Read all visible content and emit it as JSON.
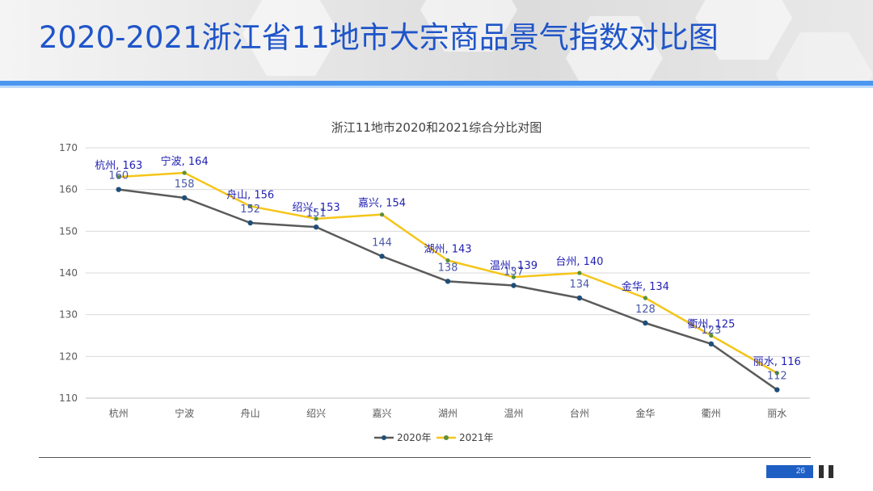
{
  "page": {
    "title": "2020-2021浙江省11地市大宗商品景气指数对比图",
    "page_number": "26"
  },
  "colors": {
    "title": "#1f55c9",
    "band": "#4b97f0",
    "series_2020": "#5a5a5a",
    "series_2020_marker": "#1f4e79",
    "series_2021": "#f5c518",
    "series_2021_marker": "#5b8f3a",
    "label_2021": "#1f1fb4",
    "label_2020": "#4a58a8"
  },
  "chart_data": {
    "type": "line",
    "title": "浙江11地市2020和2021综合分比对图",
    "categories": [
      "杭州",
      "宁波",
      "舟山",
      "绍兴",
      "嘉兴",
      "湖州",
      "温州",
      "台州",
      "金华",
      "衢州",
      "丽水"
    ],
    "series": [
      {
        "name": "2020年",
        "values": [
          160,
          158,
          152,
          151,
          144,
          138,
          137,
          134,
          128,
          123,
          112
        ],
        "label_format": "value"
      },
      {
        "name": "2021年",
        "values": [
          163,
          164,
          156,
          153,
          154,
          143,
          139,
          140,
          134,
          125,
          116
        ],
        "label_format": "category, value"
      }
    ],
    "ylim": [
      110,
      170
    ],
    "yticks": [
      110,
      120,
      130,
      140,
      150,
      160,
      170
    ],
    "grid": true,
    "legend_position": "bottom"
  }
}
